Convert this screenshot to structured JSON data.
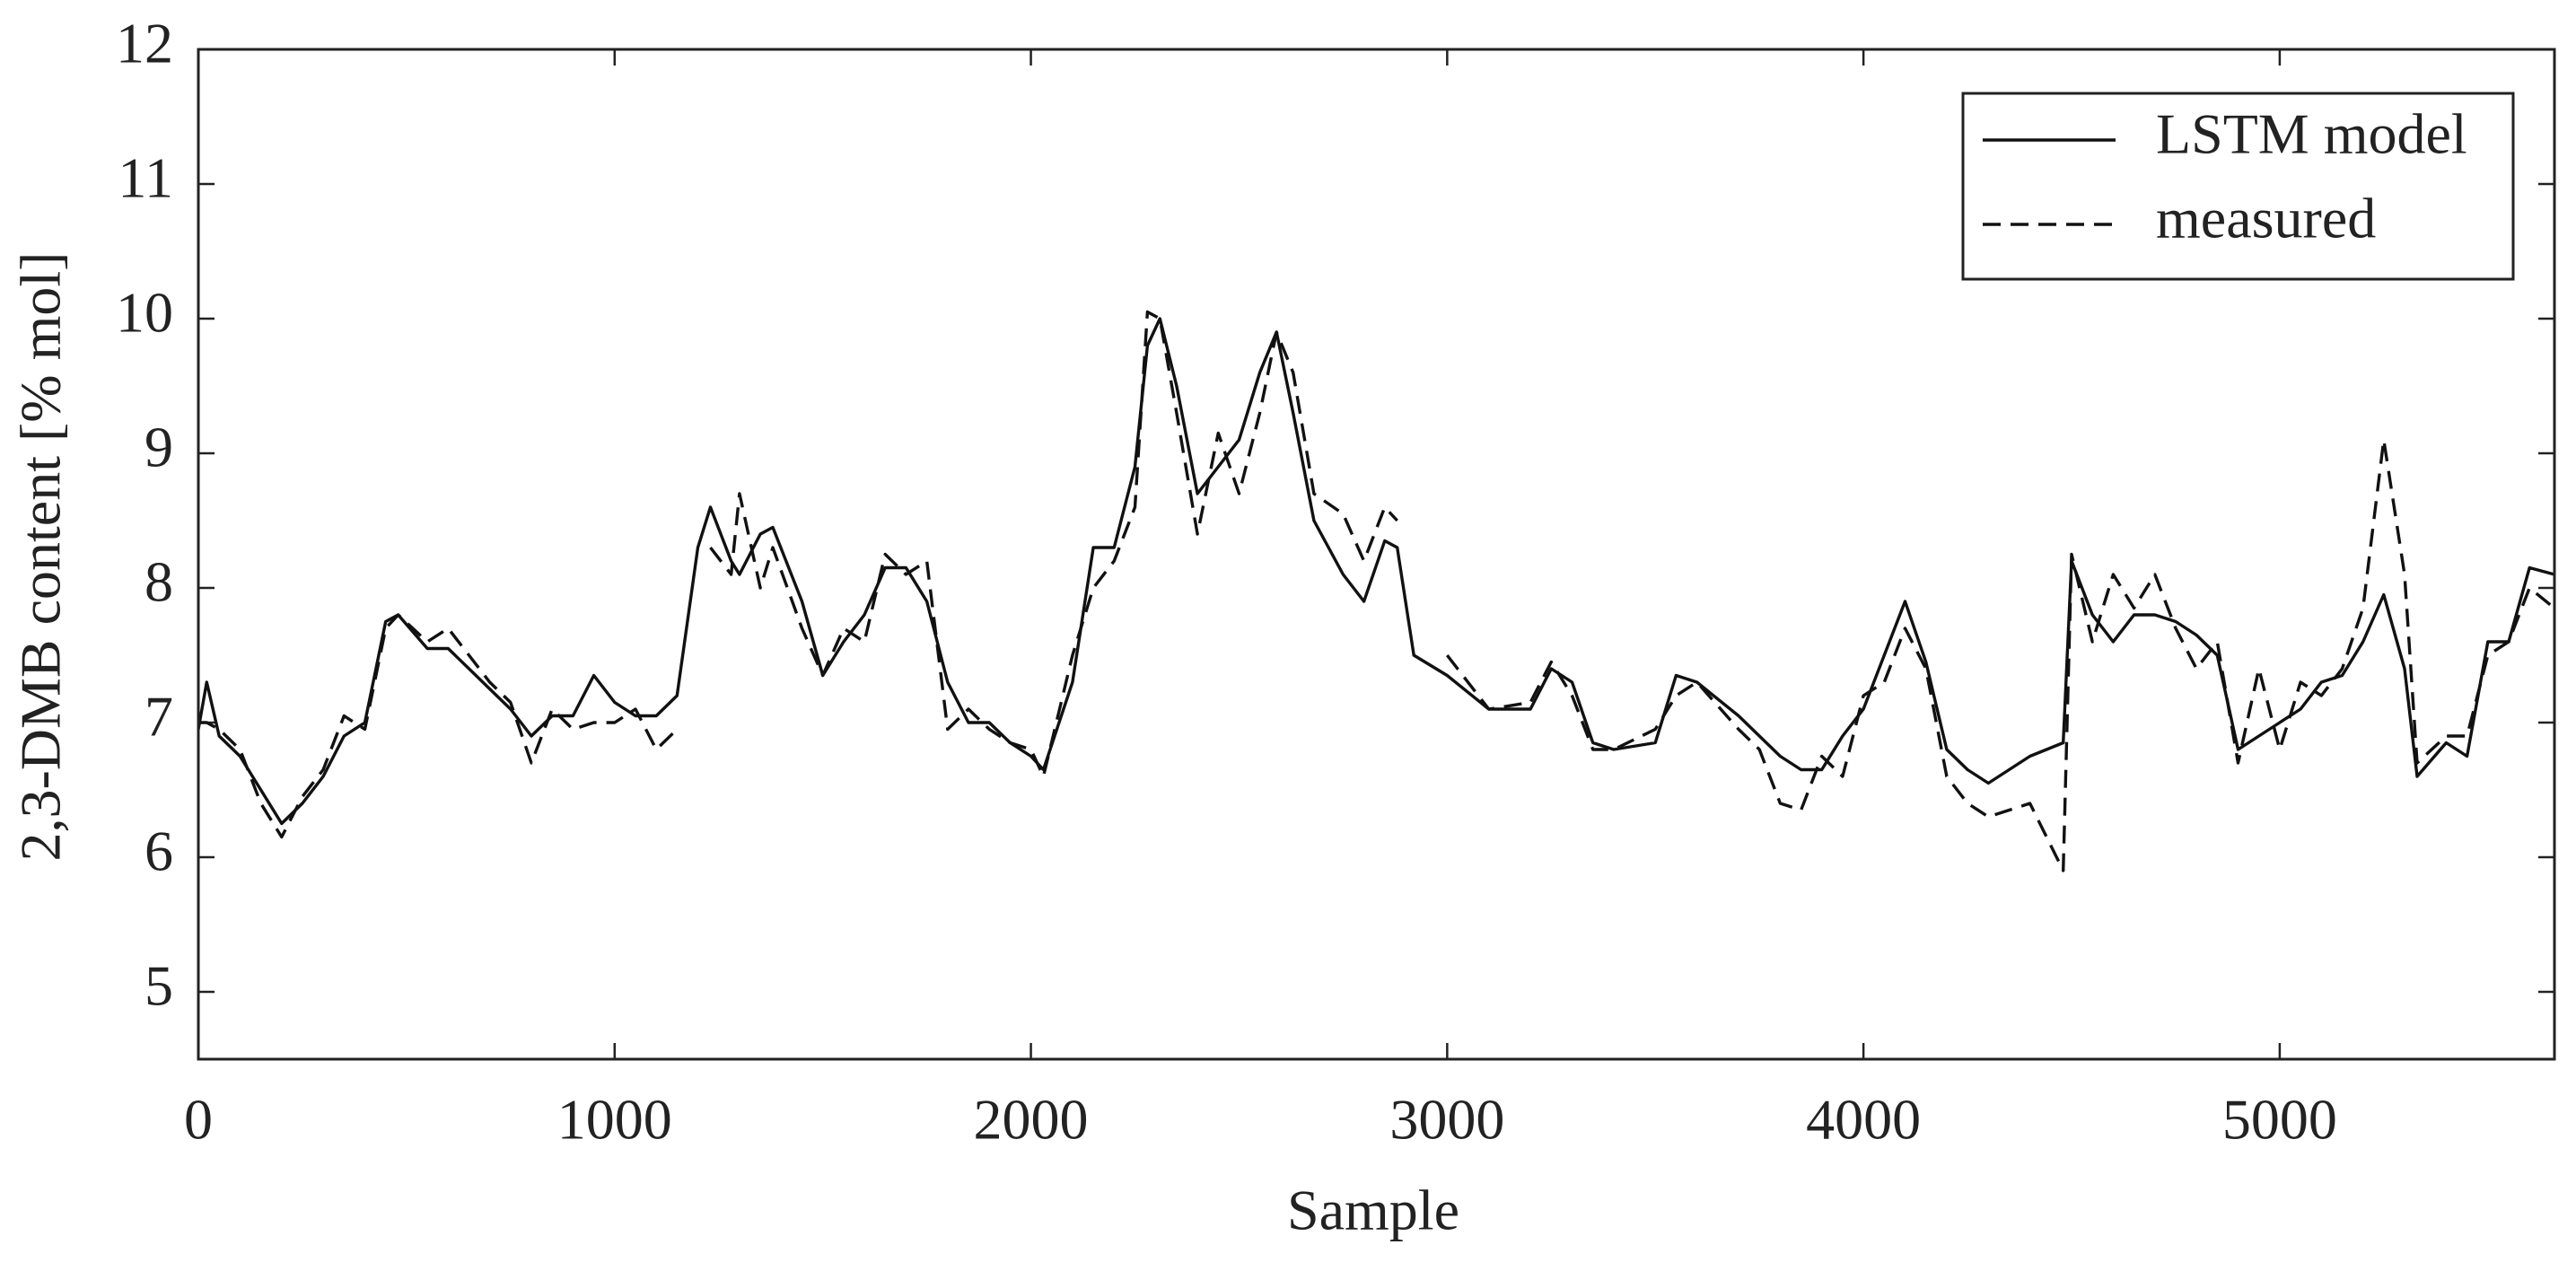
{
  "chart_data": {
    "type": "line",
    "x_label": "Sample",
    "y_label": "2,3-DMB content [% mol]",
    "x": [
      0,
      20,
      50,
      100,
      150,
      200,
      250,
      300,
      350,
      400,
      450,
      480,
      550,
      600,
      650,
      700,
      750,
      800,
      850,
      900,
      950,
      1000,
      1050,
      1100,
      1150,
      1200,
      1230,
      1280,
      1300,
      1350,
      1380,
      1450,
      1500,
      1550,
      1600,
      1650,
      1700,
      1750,
      1800,
      1850,
      1900,
      1950,
      2000,
      2030,
      2100,
      2150,
      2200,
      2250,
      2280,
      2310,
      2350,
      2400,
      2450,
      2500,
      2550,
      2590,
      2630,
      2680,
      2750,
      2800,
      2850,
      2880,
      2920,
      3000,
      3100,
      3200,
      3250,
      3300,
      3350,
      3400,
      3500,
      3550,
      3600,
      3700,
      3750,
      3800,
      3850,
      3900,
      3950,
      4000,
      4050,
      4100,
      4150,
      4200,
      4250,
      4300,
      4400,
      4480,
      4500,
      4550,
      4600,
      4650,
      4700,
      4750,
      4800,
      4850,
      4900,
      4950,
      5000,
      5050,
      5100,
      5150,
      5200,
      5250,
      5300,
      5330,
      5400,
      5450,
      5500,
      5550,
      5600,
      5660
    ],
    "series": [
      {
        "name": "LSTM model",
        "color": "#111111",
        "dash": false,
        "values": [
          6.95,
          7.3,
          6.9,
          6.75,
          6.5,
          6.25,
          6.4,
          6.6,
          6.9,
          7.0,
          7.75,
          7.8,
          7.55,
          7.55,
          7.4,
          7.25,
          7.1,
          6.9,
          7.05,
          7.05,
          7.35,
          7.15,
          7.05,
          7.05,
          7.2,
          8.3,
          8.6,
          8.2,
          8.1,
          8.4,
          8.45,
          7.9,
          7.35,
          7.6,
          7.8,
          8.15,
          8.15,
          7.9,
          7.3,
          7.0,
          7.0,
          6.85,
          6.75,
          6.65,
          7.3,
          8.3,
          8.3,
          8.9,
          9.8,
          10.0,
          9.5,
          8.7,
          8.9,
          9.1,
          9.6,
          9.9,
          9.3,
          8.5,
          8.1,
          7.9,
          8.35,
          8.3,
          7.5,
          7.35,
          7.1,
          7.1,
          7.4,
          7.3,
          6.85,
          6.8,
          6.85,
          7.35,
          7.3,
          7.05,
          6.9,
          6.75,
          6.65,
          6.65,
          6.9,
          7.1,
          7.5,
          7.9,
          7.45,
          6.8,
          6.65,
          6.55,
          6.75,
          6.85,
          8.2,
          7.8,
          7.6,
          7.8,
          7.8,
          7.75,
          7.65,
          7.5,
          6.8,
          6.9,
          7.0,
          7.1,
          7.3,
          7.35,
          7.6,
          7.95,
          7.4,
          6.6,
          6.85,
          6.75,
          7.6,
          7.6,
          8.15,
          8.1
        ]
      },
      {
        "name": "measured",
        "color": "#111111",
        "dash": true,
        "values": [
          7.0,
          7.0,
          6.95,
          6.8,
          6.4,
          6.15,
          6.45,
          6.65,
          7.05,
          6.95,
          7.7,
          7.8,
          7.6,
          7.7,
          7.5,
          7.3,
          7.15,
          6.7,
          7.1,
          6.95,
          7.0,
          7.0,
          7.1,
          6.8,
          6.95,
          null,
          8.3,
          8.1,
          8.7,
          8.0,
          8.3,
          7.7,
          7.35,
          7.7,
          7.6,
          8.25,
          8.1,
          8.2,
          6.95,
          7.1,
          6.95,
          6.85,
          6.8,
          6.6,
          7.5,
          8.0,
          8.2,
          8.6,
          10.05,
          10.0,
          9.3,
          8.4,
          9.15,
          8.7,
          9.3,
          9.9,
          9.6,
          8.7,
          8.55,
          8.2,
          8.6,
          8.5,
          null,
          7.5,
          7.1,
          7.15,
          7.45,
          7.2,
          6.8,
          6.8,
          6.95,
          7.2,
          7.3,
          6.95,
          6.8,
          6.4,
          6.35,
          6.75,
          6.6,
          7.2,
          7.3,
          7.7,
          7.4,
          6.6,
          6.4,
          6.3,
          6.4,
          5.9,
          8.25,
          7.6,
          8.1,
          7.85,
          8.1,
          7.7,
          7.4,
          7.6,
          6.7,
          7.4,
          6.8,
          7.3,
          7.2,
          7.4,
          7.85,
          9.1,
          8.1,
          6.7,
          6.9,
          6.9,
          7.5,
          7.6,
          8.0,
          7.85
        ]
      }
    ],
    "xlim": [
      0,
      5660
    ],
    "xticks": [
      0,
      1000,
      2000,
      3000,
      4000,
      5000
    ],
    "ylim": [
      4.5,
      12
    ],
    "yticks": [
      5,
      6,
      7,
      8,
      9,
      10,
      11,
      12
    ],
    "grid": false,
    "legend": "top-right"
  }
}
